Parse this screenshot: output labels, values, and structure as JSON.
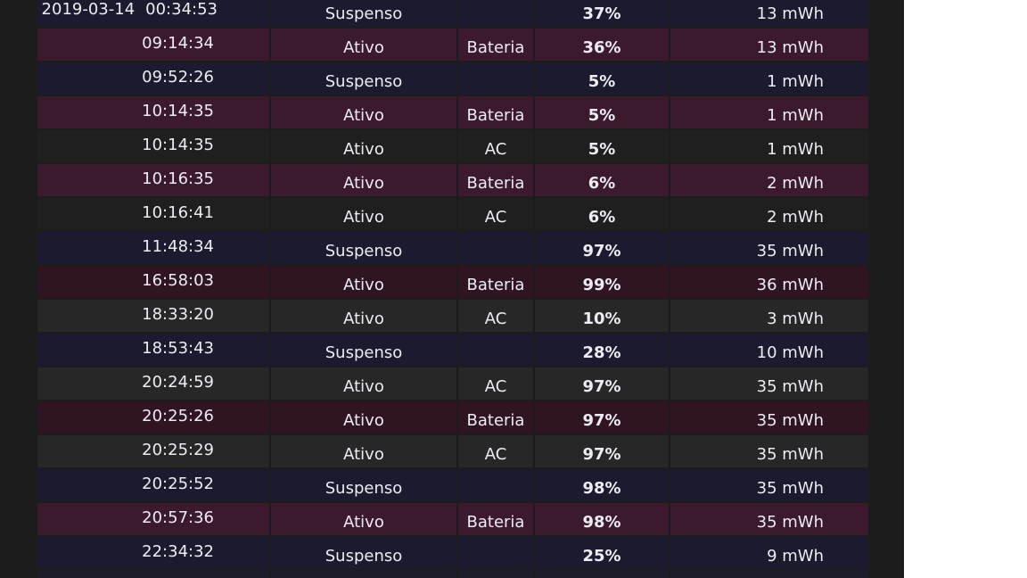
{
  "rows": [
    {
      "date": "2019-03-14",
      "time": "00:34:53",
      "state": "Suspenso",
      "source": "",
      "pct": "37%",
      "energy": "13 mWh"
    },
    {
      "date": "",
      "time": "09:14:34",
      "state": "Ativo",
      "source": "Bateria",
      "pct": "36%",
      "energy": "13 mWh"
    },
    {
      "date": "",
      "time": "09:52:26",
      "state": "Suspenso",
      "source": "",
      "pct": "5%",
      "energy": "1 mWh"
    },
    {
      "date": "",
      "time": "10:14:35",
      "state": "Ativo",
      "source": "Bateria",
      "pct": "5%",
      "energy": "1 mWh"
    },
    {
      "date": "",
      "time": "10:14:35",
      "state": "Ativo",
      "source": "AC",
      "pct": "5%",
      "energy": "1 mWh"
    },
    {
      "date": "",
      "time": "10:16:35",
      "state": "Ativo",
      "source": "Bateria",
      "pct": "6%",
      "energy": "2 mWh"
    },
    {
      "date": "",
      "time": "10:16:41",
      "state": "Ativo",
      "source": "AC",
      "pct": "6%",
      "energy": "2 mWh"
    },
    {
      "date": "",
      "time": "11:48:34",
      "state": "Suspenso",
      "source": "",
      "pct": "97%",
      "energy": "35 mWh"
    },
    {
      "date": "",
      "time": "16:58:03",
      "state": "Ativo",
      "source": "Bateria",
      "pct": "99%",
      "energy": "36 mWh"
    },
    {
      "date": "",
      "time": "18:33:20",
      "state": "Ativo",
      "source": "AC",
      "pct": "10%",
      "energy": "3 mWh"
    },
    {
      "date": "",
      "time": "18:53:43",
      "state": "Suspenso",
      "source": "",
      "pct": "28%",
      "energy": "10 mWh"
    },
    {
      "date": "",
      "time": "20:24:59",
      "state": "Ativo",
      "source": "AC",
      "pct": "97%",
      "energy": "35 mWh"
    },
    {
      "date": "",
      "time": "20:25:26",
      "state": "Ativo",
      "source": "Bateria",
      "pct": "97%",
      "energy": "35 mWh"
    },
    {
      "date": "",
      "time": "20:25:29",
      "state": "Ativo",
      "source": "AC",
      "pct": "97%",
      "energy": "35 mWh"
    },
    {
      "date": "",
      "time": "20:25:52",
      "state": "Suspenso",
      "source": "",
      "pct": "98%",
      "energy": "35 mWh"
    },
    {
      "date": "",
      "time": "20:57:36",
      "state": "Ativo",
      "source": "Bateria",
      "pct": "98%",
      "energy": "35 mWh"
    },
    {
      "date": "",
      "time": "22:34:32",
      "state": "Suspenso",
      "source": "",
      "pct": "25%",
      "energy": "9 mWh"
    }
  ],
  "colors": {
    "panel_bg": "#1c1c1c",
    "row_suspended": "#1c1a2e",
    "row_battery": "#3c1a2d",
    "row_ac": "#1f1f1f",
    "text": "#ececf2"
  }
}
